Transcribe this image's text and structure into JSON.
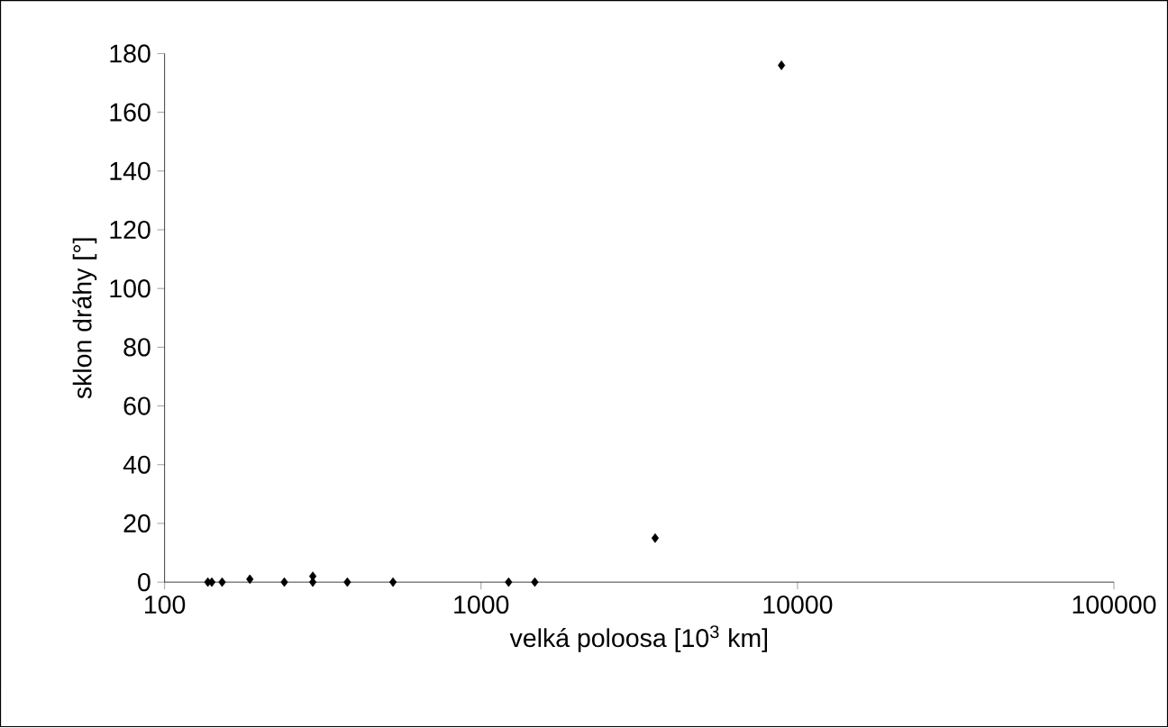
{
  "chart_data": {
    "type": "scatter",
    "xlabel": "velká poloosa [10$^{3}$ km]",
    "ylabel": "sklon dráhy [°]",
    "x": [
      137,
      141,
      152,
      186,
      239,
      294,
      294,
      378,
      527,
      1222,
      1479,
      3550,
      8900
    ],
    "values": [
      0,
      0,
      0,
      1,
      0,
      0,
      2,
      0,
      0,
      0,
      0,
      15,
      176
    ],
    "color": "#000000",
    "marker": "diamond",
    "log": "x",
    "grid": false,
    "xlim": [
      100,
      100000
    ],
    "xticks": [
      100,
      1000,
      10000,
      100000
    ],
    "ylim": [
      0,
      180
    ],
    "yticks": [
      0,
      20,
      40,
      60,
      80,
      100,
      120,
      140,
      160,
      180
    ]
  }
}
